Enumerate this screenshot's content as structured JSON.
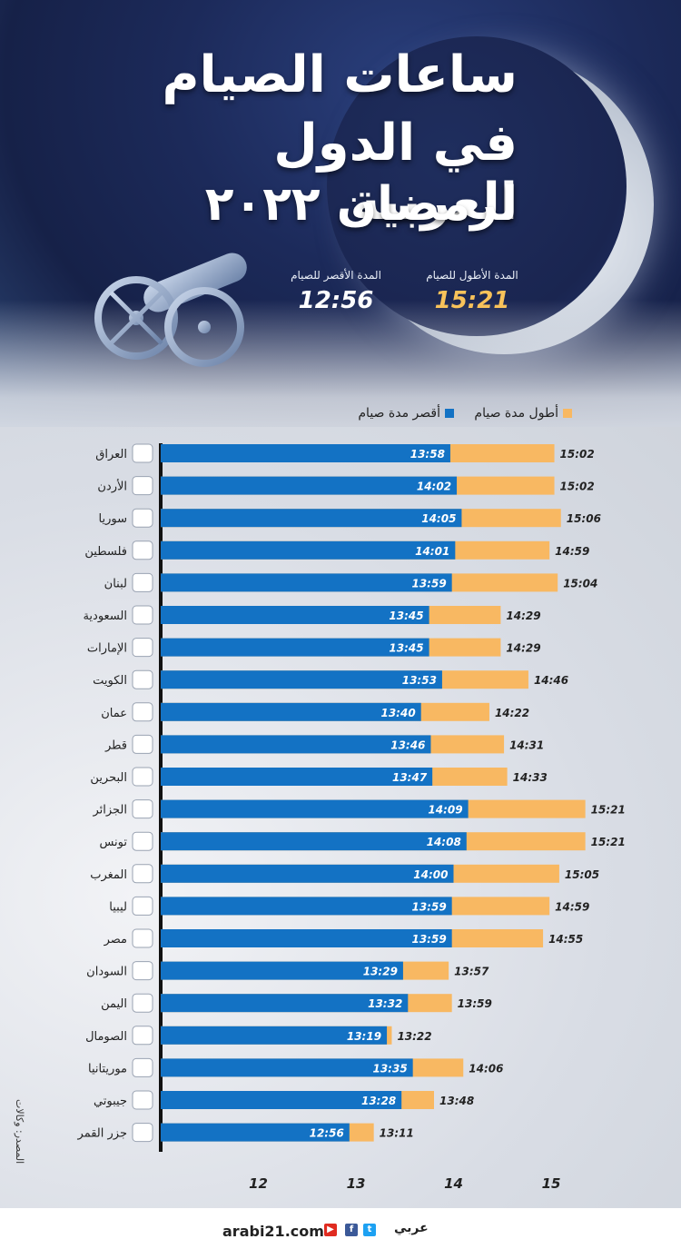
{
  "title": {
    "line1": "ساعات الصيام",
    "line2": "في الدول العربية",
    "line3": "لرمضان ٢٠٢٢"
  },
  "stats": {
    "longest_label": "المدة الأطول للصيام",
    "longest_value": "15:21",
    "shortest_label": "المدة الأقصر للصيام",
    "shortest_value": "12:56"
  },
  "legend": {
    "longest": "أطول مدة صيام",
    "shortest": "أقصر مدة صيام"
  },
  "source": "المصدر: وكالات",
  "footer": {
    "site": "arabi21.com",
    "logo": "عربي"
  },
  "colors": {
    "shortest": "#1372c4",
    "longest": "#f8b862",
    "accent_value": "#f8c25a"
  },
  "chart_data": {
    "type": "bar",
    "orientation": "horizontal",
    "xlim": [
      11,
      15.5
    ],
    "x_ticks": [
      "12",
      "13",
      "14",
      "15"
    ],
    "x_tick_values": [
      12,
      13,
      14,
      15
    ],
    "grid": false,
    "legend_position": "top-right",
    "categories": [
      "العراق",
      "الأردن",
      "سوريا",
      "فلسطين",
      "لبنان",
      "السعودية",
      "الإمارات",
      "الكويت",
      "عمان",
      "قطر",
      "البحرين",
      "الجزائر",
      "تونس",
      "المغرب",
      "ليبيا",
      "مصر",
      "السودان",
      "اليمن",
      "الصومال",
      "موريتانيا",
      "جيبوتي",
      "جزر القمر"
    ],
    "series": [
      {
        "name": "أقصر مدة صيام",
        "labels": [
          "13:58",
          "14:02",
          "14:05",
          "14:01",
          "13:59",
          "13:45",
          "13:45",
          "13:53",
          "13:40",
          "13:46",
          "13:47",
          "14:09",
          "14:08",
          "14:00",
          "13:59",
          "13:59",
          "13:29",
          "13:32",
          "13:19",
          "13:35",
          "13:28",
          "12:56"
        ],
        "values": [
          13.967,
          14.033,
          14.083,
          14.017,
          13.983,
          13.75,
          13.75,
          13.883,
          13.667,
          13.767,
          13.783,
          14.15,
          14.133,
          14.0,
          13.983,
          13.983,
          13.483,
          13.533,
          13.317,
          13.583,
          13.467,
          12.933
        ]
      },
      {
        "name": "أطول مدة صيام",
        "labels": [
          "15:02",
          "15:02",
          "15:06",
          "14:59",
          "15:04",
          "14:29",
          "14:29",
          "14:46",
          "14:22",
          "14:31",
          "14:33",
          "15:21",
          "15:21",
          "15:05",
          "14:59",
          "14:55",
          "13:57",
          "13:59",
          "13:22",
          "14:06",
          "13:48",
          "13:11"
        ],
        "values": [
          15.033,
          15.033,
          15.1,
          14.983,
          15.067,
          14.483,
          14.483,
          14.767,
          14.367,
          14.517,
          14.55,
          15.35,
          15.35,
          15.083,
          14.983,
          14.917,
          13.95,
          13.983,
          13.367,
          14.1,
          13.8,
          13.183
        ]
      }
    ]
  }
}
